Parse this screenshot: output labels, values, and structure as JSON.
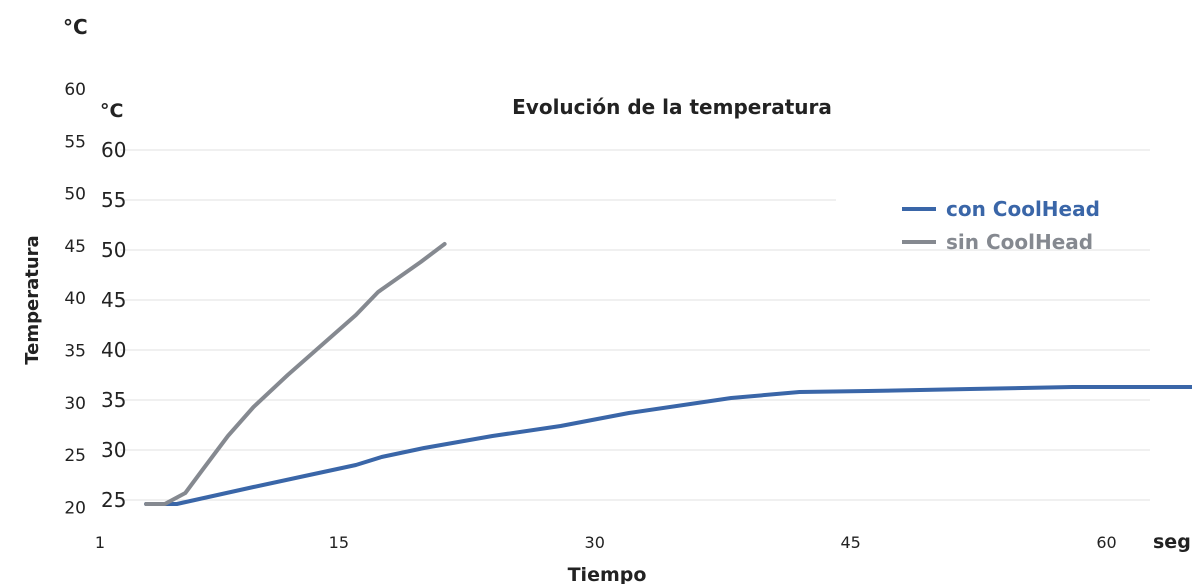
{
  "chart_data": {
    "type": "line",
    "title": "Evolución de la temperatura",
    "xlabel": "Tiempo",
    "ylabel": "Temperatura",
    "x_unit": "seg",
    "outer_y_unit": "°C",
    "inner_y_unit": "°C",
    "outer_y_ticks": [
      "60",
      "55",
      "50",
      "45",
      "40",
      "35",
      "30",
      "25",
      "20"
    ],
    "inner_y_ticks": [
      "60",
      "55",
      "50",
      "45",
      "40",
      "35",
      "30",
      "25"
    ],
    "x_ticks": [
      "1",
      "15",
      "30",
      "45",
      "60"
    ],
    "xlim": [
      1,
      65
    ],
    "ylim": [
      23,
      60
    ],
    "grid": true,
    "legend_position": "top-right",
    "series": [
      {
        "name": "con CoolHead",
        "color": "#3a66a8",
        "x": [
          3.7,
          5.5,
          10,
          13,
          16,
          17.5,
          20,
          24,
          28,
          32,
          38,
          42,
          46,
          52,
          58,
          65
        ],
        "y": [
          24.6,
          24.6,
          26.3,
          27.4,
          28.5,
          29.3,
          30.2,
          31.4,
          32.4,
          33.7,
          35.2,
          35.8,
          35.9,
          36.1,
          36.3,
          36.3
        ]
      },
      {
        "name": "sin CoolHead",
        "color": "#858990",
        "x": [
          3.7,
          4.8,
          6,
          7,
          8.5,
          10,
          12,
          14,
          16,
          17.3,
          19.8,
          21.2
        ],
        "y": [
          24.6,
          24.6,
          25.7,
          28.0,
          31.4,
          34.3,
          37.5,
          40.5,
          43.5,
          45.8,
          48.8,
          50.6
        ]
      }
    ]
  }
}
